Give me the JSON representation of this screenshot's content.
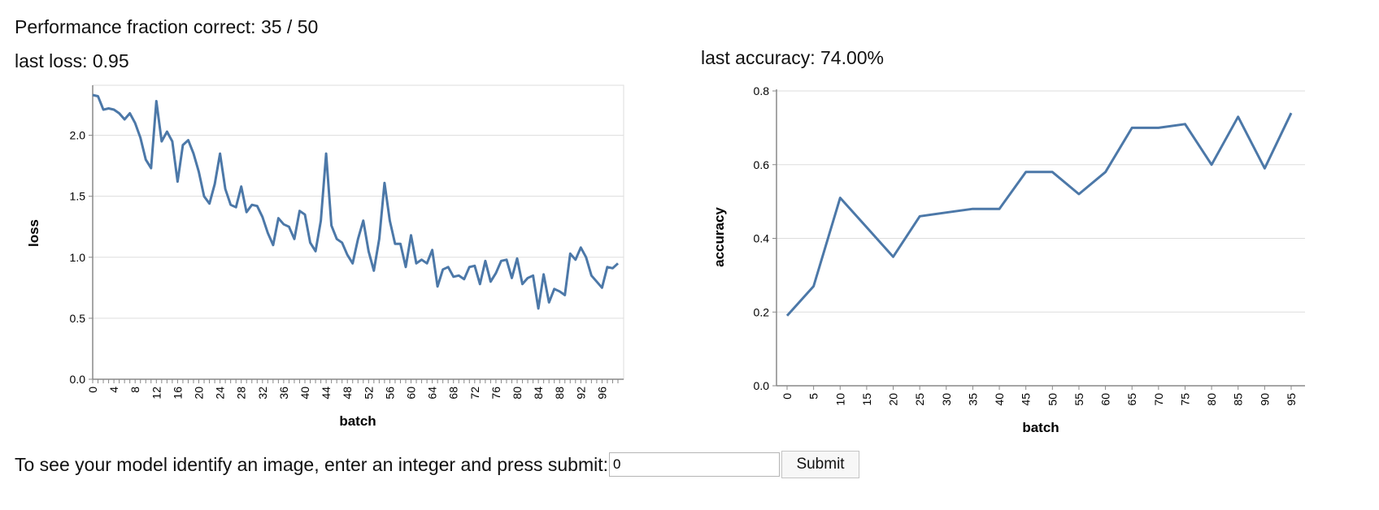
{
  "header": {
    "performance": "Performance fraction correct: 35 / 50",
    "last_loss": "last loss: 0.95",
    "last_accuracy": "last accuracy: 74.00%"
  },
  "form": {
    "label": "To see your model identify an image, enter an integer and press submit:",
    "input_value": "0",
    "submit_label": "Submit"
  },
  "colors": {
    "line": "#4c78a8",
    "grid": "#dddddd",
    "axis": "#888888"
  },
  "chart_data": [
    {
      "type": "line",
      "xlabel": "batch",
      "ylabel": "loss",
      "xlim": [
        0,
        99
      ],
      "ylim": [
        0,
        2.35
      ],
      "yticks": [
        0.0,
        0.5,
        1.0,
        1.5,
        2.0
      ],
      "yticklabels": [
        "0.0",
        "0.5",
        "1.0",
        "1.5",
        "2.0"
      ],
      "xticks_labeled": [
        0,
        4,
        8,
        12,
        16,
        20,
        24,
        28,
        32,
        36,
        40,
        44,
        48,
        52,
        56,
        60,
        64,
        68,
        72,
        76,
        80,
        84,
        88,
        92,
        96
      ],
      "grid": true,
      "x": [
        0,
        1,
        2,
        3,
        4,
        5,
        6,
        7,
        8,
        9,
        10,
        11,
        12,
        13,
        14,
        15,
        16,
        17,
        18,
        19,
        20,
        21,
        22,
        23,
        24,
        25,
        26,
        27,
        28,
        29,
        30,
        31,
        32,
        33,
        34,
        35,
        36,
        37,
        38,
        39,
        40,
        41,
        42,
        43,
        44,
        45,
        46,
        47,
        48,
        49,
        50,
        51,
        52,
        53,
        54,
        55,
        56,
        57,
        58,
        59,
        60,
        61,
        62,
        63,
        64,
        65,
        66,
        67,
        68,
        69,
        70,
        71,
        72,
        73,
        74,
        75,
        76,
        77,
        78,
        79,
        80,
        81,
        82,
        83,
        84,
        85,
        86,
        87,
        88,
        89,
        90,
        91,
        92,
        93,
        94,
        95,
        96,
        97,
        98,
        99
      ],
      "y": [
        2.33,
        2.32,
        2.21,
        2.22,
        2.21,
        2.18,
        2.13,
        2.18,
        2.1,
        1.98,
        1.8,
        1.73,
        2.28,
        1.95,
        2.03,
        1.95,
        1.62,
        1.92,
        1.96,
        1.85,
        1.7,
        1.5,
        1.44,
        1.6,
        1.85,
        1.56,
        1.43,
        1.41,
        1.58,
        1.37,
        1.43,
        1.42,
        1.33,
        1.2,
        1.1,
        1.32,
        1.27,
        1.25,
        1.15,
        1.38,
        1.35,
        1.12,
        1.05,
        1.3,
        1.85,
        1.26,
        1.15,
        1.12,
        1.02,
        0.95,
        1.15,
        1.3,
        1.05,
        0.89,
        1.15,
        1.61,
        1.3,
        1.11,
        1.11,
        0.92,
        1.18,
        0.95,
        0.98,
        0.95,
        1.06,
        0.76,
        0.9,
        0.92,
        0.84,
        0.85,
        0.82,
        0.92,
        0.93,
        0.78,
        0.97,
        0.8,
        0.87,
        0.97,
        0.98,
        0.83,
        0.99,
        0.78,
        0.83,
        0.85,
        0.58,
        0.86,
        0.63,
        0.74,
        0.72,
        0.69,
        1.03,
        0.98,
        1.08,
        1.0,
        0.85,
        0.8,
        0.75,
        0.92,
        0.91,
        0.95
      ]
    },
    {
      "type": "line",
      "xlabel": "batch",
      "ylabel": "accuracy",
      "xlim": [
        0,
        95
      ],
      "ylim": [
        0,
        0.8
      ],
      "yticks": [
        0.0,
        0.2,
        0.4,
        0.6,
        0.8
      ],
      "yticklabels": [
        "0.0",
        "0.2",
        "0.4",
        "0.6",
        "0.8"
      ],
      "xticks_labeled": [
        0,
        5,
        10,
        15,
        20,
        25,
        30,
        35,
        40,
        45,
        50,
        55,
        60,
        65,
        70,
        75,
        80,
        85,
        90,
        95
      ],
      "grid": true,
      "x": [
        0,
        5,
        10,
        15,
        20,
        25,
        30,
        35,
        40,
        45,
        50,
        55,
        60,
        65,
        70,
        75,
        80,
        85,
        90,
        95
      ],
      "y": [
        0.19,
        0.27,
        0.51,
        0.43,
        0.35,
        0.46,
        0.47,
        0.48,
        0.48,
        0.58,
        0.58,
        0.52,
        0.58,
        0.7,
        0.7,
        0.71,
        0.6,
        0.73,
        0.59,
        0.74
      ]
    }
  ]
}
